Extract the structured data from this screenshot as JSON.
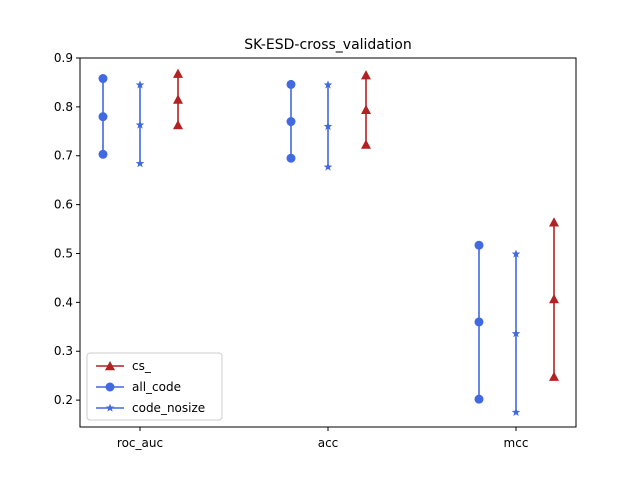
{
  "chart_data": {
    "type": "errorbar",
    "title": "SK-ESD-cross_validation",
    "xlabel": "",
    "ylabel": "",
    "categories": [
      "roc_auc",
      "acc",
      "mcc"
    ],
    "ylim": [
      0.145,
      0.9
    ],
    "yticks": [
      0.2,
      0.3,
      0.4,
      0.5,
      0.6,
      0.7,
      0.8,
      0.9
    ],
    "grid": false,
    "legend_position": "lower-left",
    "series": [
      {
        "name": "all_code",
        "color": "#4169E1",
        "marker": "circle",
        "values": [
          {
            "category": "roc_auc",
            "low": 0.703,
            "mid": 0.78,
            "high": 0.858
          },
          {
            "category": "acc",
            "low": 0.695,
            "mid": 0.77,
            "high": 0.846
          },
          {
            "category": "mcc",
            "low": 0.202,
            "mid": 0.36,
            "high": 0.517
          }
        ]
      },
      {
        "name": "code_nosize",
        "color": "#4169E1",
        "marker": "star",
        "values": [
          {
            "category": "roc_auc",
            "low": 0.684,
            "mid": 0.763,
            "high": 0.845
          },
          {
            "category": "acc",
            "low": 0.677,
            "mid": 0.76,
            "high": 0.845
          },
          {
            "category": "mcc",
            "low": 0.175,
            "mid": 0.336,
            "high": 0.499
          }
        ]
      },
      {
        "name": "cs_",
        "color": "#B22222",
        "marker": "triangle",
        "values": [
          {
            "category": "roc_auc",
            "low": 0.763,
            "mid": 0.815,
            "high": 0.868
          },
          {
            "category": "acc",
            "low": 0.723,
            "mid": 0.794,
            "high": 0.865
          },
          {
            "category": "mcc",
            "low": 0.248,
            "mid": 0.407,
            "high": 0.564
          }
        ]
      }
    ],
    "legend_order": [
      "cs_",
      "all_code",
      "code_nosize"
    ]
  }
}
